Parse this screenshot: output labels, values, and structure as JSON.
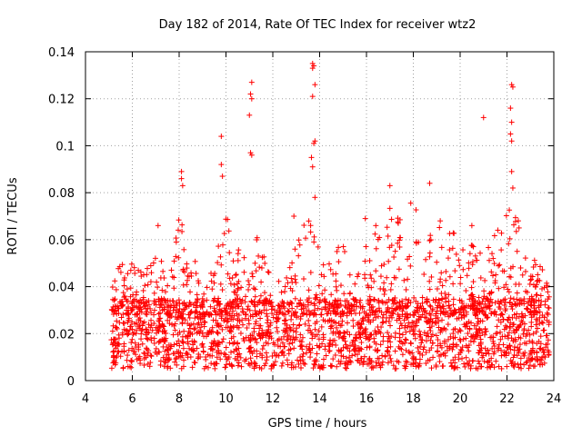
{
  "chart_data": {
    "type": "scatter",
    "title": "Day 182 of 2014, Rate Of TEC Index for receiver wtz2",
    "xlabel": "GPS time / hours",
    "ylabel": "ROTI / TECUs",
    "xlim": [
      4,
      24
    ],
    "ylim": [
      0,
      0.14
    ],
    "xticks": [
      "4",
      "6",
      "8",
      "10",
      "12",
      "14",
      "16",
      "18",
      "20",
      "22",
      "24"
    ],
    "yticks": [
      "0",
      "0.02",
      "0.04",
      "0.06",
      "0.08",
      "0.1",
      "0.12",
      "0.14"
    ],
    "grid": true,
    "marker": "+",
    "color": "#ff0000",
    "series": [
      {
        "name": "ROTI",
        "x_range": [
          5.1,
          23.8
        ],
        "baseline_band": [
          0.005,
          0.035
        ],
        "highlighted_points": [
          {
            "x": 8.1,
            "y": 0.089
          },
          {
            "x": 8.1,
            "y": 0.086
          },
          {
            "x": 8.15,
            "y": 0.083
          },
          {
            "x": 9.8,
            "y": 0.104
          },
          {
            "x": 9.8,
            "y": 0.092
          },
          {
            "x": 9.85,
            "y": 0.087
          },
          {
            "x": 11.1,
            "y": 0.127
          },
          {
            "x": 11.05,
            "y": 0.122
          },
          {
            "x": 11.1,
            "y": 0.12
          },
          {
            "x": 11.0,
            "y": 0.113
          },
          {
            "x": 11.05,
            "y": 0.097
          },
          {
            "x": 11.1,
            "y": 0.096
          },
          {
            "x": 13.7,
            "y": 0.135
          },
          {
            "x": 13.75,
            "y": 0.134
          },
          {
            "x": 13.7,
            "y": 0.133
          },
          {
            "x": 13.8,
            "y": 0.126
          },
          {
            "x": 13.7,
            "y": 0.121
          },
          {
            "x": 13.8,
            "y": 0.102
          },
          {
            "x": 13.75,
            "y": 0.101
          },
          {
            "x": 13.65,
            "y": 0.095
          },
          {
            "x": 13.7,
            "y": 0.091
          },
          {
            "x": 13.8,
            "y": 0.078
          },
          {
            "x": 17.0,
            "y": 0.083
          },
          {
            "x": 18.7,
            "y": 0.084
          },
          {
            "x": 21.0,
            "y": 0.112
          },
          {
            "x": 22.2,
            "y": 0.126
          },
          {
            "x": 22.25,
            "y": 0.125
          },
          {
            "x": 22.15,
            "y": 0.116
          },
          {
            "x": 22.2,
            "y": 0.11
          },
          {
            "x": 22.15,
            "y": 0.105
          },
          {
            "x": 22.2,
            "y": 0.102
          },
          {
            "x": 22.2,
            "y": 0.089
          },
          {
            "x": 22.25,
            "y": 0.082
          },
          {
            "x": 7.1,
            "y": 0.066
          },
          {
            "x": 12.9,
            "y": 0.07
          },
          {
            "x": 15.95,
            "y": 0.069
          },
          {
            "x": 16.4,
            "y": 0.066
          },
          {
            "x": 20.5,
            "y": 0.066
          },
          {
            "x": 19.15,
            "y": 0.068
          }
        ],
        "hour_envelope": [
          [
            5.0,
            0.034
          ],
          [
            5.5,
            0.055
          ],
          [
            6.0,
            0.05
          ],
          [
            6.5,
            0.045
          ],
          [
            7.0,
            0.062
          ],
          [
            7.5,
            0.044
          ],
          [
            8.0,
            0.07
          ],
          [
            8.5,
            0.062
          ],
          [
            9.0,
            0.038
          ],
          [
            9.5,
            0.05
          ],
          [
            10.0,
            0.072
          ],
          [
            10.5,
            0.058
          ],
          [
            11.0,
            0.068
          ],
          [
            11.5,
            0.06
          ],
          [
            12.0,
            0.04
          ],
          [
            12.5,
            0.045
          ],
          [
            13.0,
            0.064
          ],
          [
            13.5,
            0.072
          ],
          [
            14.0,
            0.062
          ],
          [
            14.5,
            0.052
          ],
          [
            15.0,
            0.062
          ],
          [
            15.5,
            0.045
          ],
          [
            16.0,
            0.064
          ],
          [
            16.5,
            0.068
          ],
          [
            17.0,
            0.074
          ],
          [
            17.5,
            0.07
          ],
          [
            18.0,
            0.078
          ],
          [
            18.5,
            0.06
          ],
          [
            19.0,
            0.07
          ],
          [
            19.5,
            0.066
          ],
          [
            20.0,
            0.064
          ],
          [
            20.5,
            0.06
          ],
          [
            21.0,
            0.056
          ],
          [
            21.5,
            0.066
          ],
          [
            22.0,
            0.075
          ],
          [
            22.5,
            0.068
          ],
          [
            23.0,
            0.052
          ],
          [
            23.5,
            0.055
          ],
          [
            24.0,
            0.04
          ]
        ]
      }
    ]
  }
}
